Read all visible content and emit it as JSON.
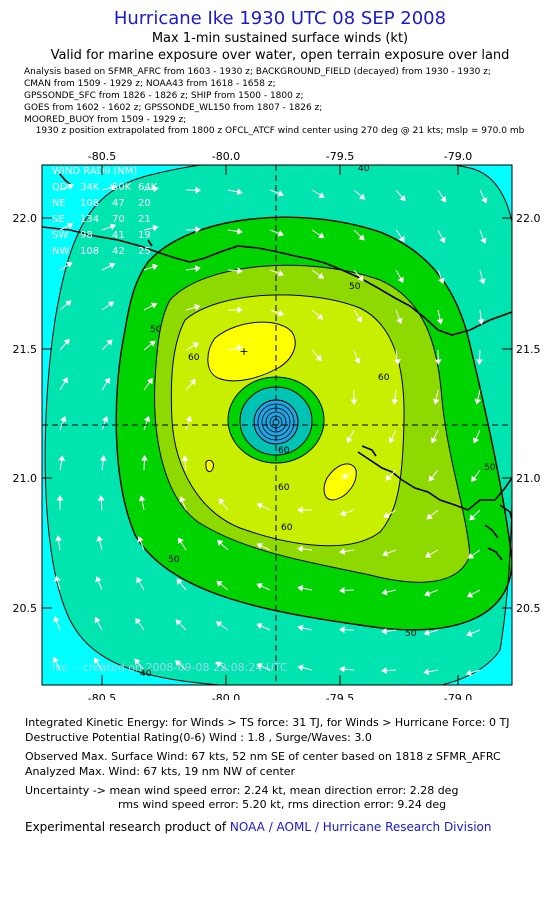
{
  "header": {
    "title": "Hurricane Ike 1930 UTC 08 SEP 2008",
    "subtitle1": "Max 1-min sustained surface winds (kt)",
    "subtitle2": "Valid for marine exposure over water, open terrain exposure over land",
    "analysis_lines": [
      "Analysis based on  SFMR_AFRC from 1603 - 1930 z;  BACKGROUND_FIELD (decayed) from 1930 - 1930 z;",
      "CMAN from 1509 - 1929 z;  NOAA43 from 1618 - 1658 z;",
      "GPSSONDE_SFC from 1826 - 1826 z;  SHIP from 1500 - 1800 z;",
      "GOES from 1602 - 1602 z;  GPSSONDE_WL150 from 1807 - 1826 z;",
      "MOORED_BUOY from 1509 - 1929 z;",
      "1930 z position extrapolated from 1800 z OFCL_ATCF wind center using 270 deg @ 21 kts; mslp = 970.0 mb"
    ]
  },
  "map": {
    "lon_ticks": [
      "-80.5",
      "-80.0",
      "-79.5",
      "-79.0"
    ],
    "lat_ticks": [
      "22.0",
      "21.5",
      "21.0",
      "20.5"
    ],
    "contour_labels": [
      "40",
      "50",
      "50",
      "50",
      "50",
      "50",
      "60",
      "60",
      "60",
      "60",
      "60",
      "40"
    ],
    "watermark": "Ike -- created on 2008-09-08 22:08:24 UTC",
    "colors": {
      "ocean_far": "#00ffff",
      "band_40": "#00e4b0",
      "band_50": "#00d400",
      "band_55": "#8ed900",
      "band_60": "#c8ee00",
      "band_65": "#ffff00",
      "eye_outer": "#00c3b4",
      "eye_core": "#1fa6e5"
    },
    "wind_radii": {
      "title": "WIND RADII (NM)",
      "header": [
        "QD",
        "34K",
        "50K",
        "64K"
      ],
      "rows": [
        [
          "NE",
          "108",
          "47",
          "20"
        ],
        [
          "SE",
          "134",
          "70",
          "21"
        ],
        [
          "SW",
          "98",
          "41",
          "19"
        ],
        [
          "NW",
          "108",
          "42",
          "25"
        ]
      ]
    }
  },
  "footer": {
    "ike_line": "Integrated Kinetic Energy:  for Winds > TS force: 31 TJ,  for Winds > Hurricane Force: 0 TJ",
    "dp_line": "Destructive Potential Rating(0-6)  Wind : 1.8 , Surge/Waves: 3.0",
    "obs_line": "Observed Max. Surface Wind: 67 kts, 52 nm SE of center based on 1818 z SFMR_AFRC",
    "ana_line": "Analyzed Max. Wind: 67 kts, 19 nm NW of center",
    "unc_line1": "Uncertainty -> mean wind speed error: 2.24 kt,   mean direction error: 2.28 deg",
    "unc_line2": "rms wind speed error: 5.20 kt,   rms direction error: 9.24 deg",
    "credit_prefix": "Experimental research product of ",
    "credit_org": "NOAA / AOML / Hurricane Research Division"
  }
}
